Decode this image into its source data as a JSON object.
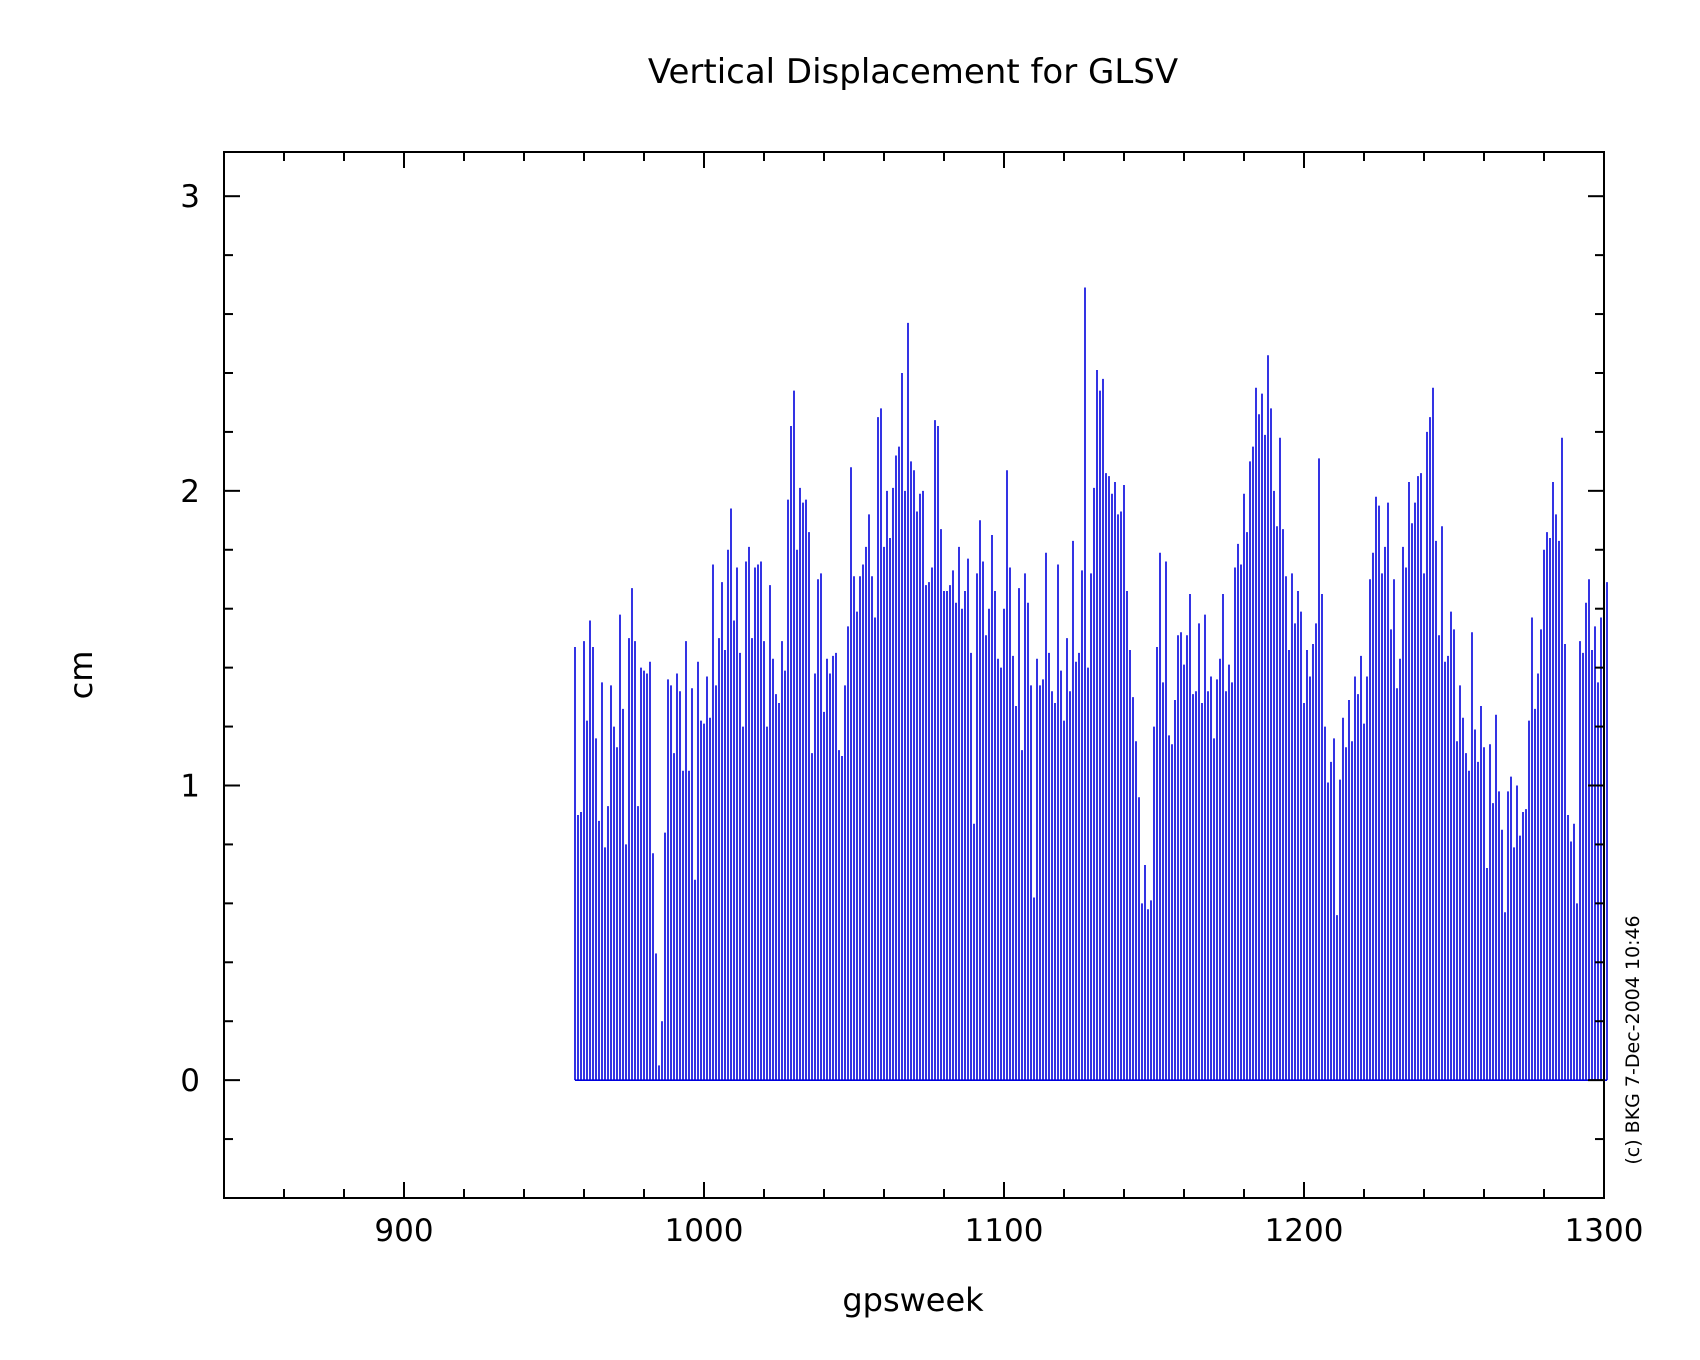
{
  "chart_data": {
    "type": "bar",
    "title": "Vertical Displacement for GLSV",
    "xlabel": "gpsweek",
    "ylabel": "cm",
    "xlim": [
      840,
      1300
    ],
    "ylim": [
      -0.4,
      3.15
    ],
    "x_ticks": [
      "900",
      "1000",
      "1100",
      "1200",
      "1300"
    ],
    "y_ticks": [
      "0",
      "1",
      "2",
      "3"
    ],
    "grid": false,
    "credit": "(c) BKG 7-Dec-2004 10:46",
    "bar_color": "#0000dd",
    "series": [
      {
        "x_start": 957,
        "x_step": 1,
        "values": [
          1.47,
          0.9,
          0.91,
          1.49,
          1.22,
          1.56,
          1.47,
          1.16,
          0.88,
          1.35,
          0.79,
          0.93,
          1.34,
          1.2,
          1.13,
          1.58,
          1.26,
          0.8,
          1.5,
          1.67,
          1.49,
          0.93,
          1.4,
          1.39,
          1.38,
          1.42,
          0.77,
          0.43,
          0.05,
          0.2,
          0.84,
          1.36,
          1.34,
          1.11,
          1.38,
          1.32,
          1.05,
          1.49,
          1.05,
          1.33,
          0.68,
          1.42,
          1.22,
          1.21,
          1.37,
          1.23,
          1.75,
          1.34,
          1.5,
          1.69,
          1.46,
          1.8,
          1.94,
          1.56,
          1.74,
          1.45,
          1.2,
          1.76,
          1.81,
          1.5,
          1.74,
          1.75,
          1.76,
          1.49,
          1.2,
          1.68,
          1.43,
          1.31,
          1.28,
          1.49,
          1.39,
          1.97,
          2.22,
          2.34,
          1.8,
          2.01,
          1.96,
          1.97,
          1.86,
          1.11,
          1.38,
          1.7,
          1.72,
          1.25,
          1.43,
          1.38,
          1.44,
          1.45,
          1.12,
          1.1,
          1.34,
          1.54,
          2.08,
          1.71,
          1.59,
          1.71,
          1.75,
          1.81,
          1.92,
          1.71,
          1.57,
          2.25,
          2.28,
          1.81,
          2.0,
          1.84,
          2.01,
          2.12,
          2.15,
          2.4,
          2.0,
          2.57,
          2.1,
          2.07,
          1.93,
          1.99,
          2.0,
          1.68,
          1.69,
          1.74,
          2.24,
          2.22,
          1.87,
          1.66,
          1.66,
          1.68,
          1.73,
          1.62,
          1.81,
          1.6,
          1.66,
          1.77,
          1.45,
          0.87,
          1.72,
          1.9,
          1.76,
          1.51,
          1.6,
          1.85,
          1.66,
          1.43,
          1.4,
          1.6,
          2.07,
          1.74,
          1.44,
          1.27,
          1.67,
          1.12,
          1.72,
          1.62,
          1.34,
          0.62,
          1.43,
          1.34,
          1.36,
          1.79,
          1.45,
          1.32,
          1.28,
          1.75,
          1.39,
          1.22,
          1.5,
          1.32,
          1.83,
          1.42,
          1.45,
          1.73,
          2.69,
          1.4,
          1.72,
          2.01,
          2.41,
          2.34,
          2.38,
          2.06,
          2.05,
          1.99,
          2.03,
          1.92,
          1.93,
          2.02,
          1.66,
          1.46,
          1.3,
          1.15,
          0.96,
          0.6,
          0.73,
          0.58,
          0.61,
          1.2,
          1.47,
          1.79,
          1.35,
          1.76,
          1.17,
          1.14,
          1.29,
          1.51,
          1.52,
          1.41,
          1.51,
          1.65,
          1.31,
          1.32,
          1.55,
          1.28,
          1.58,
          1.32,
          1.37,
          1.16,
          1.36,
          1.43,
          1.65,
          1.32,
          1.41,
          1.35,
          1.74,
          1.82,
          1.75,
          1.99,
          1.86,
          2.1,
          2.15,
          2.35,
          2.26,
          2.33,
          2.19,
          2.46,
          2.28,
          2.0,
          1.88,
          2.18,
          1.87,
          1.71,
          1.46,
          1.72,
          1.55,
          1.66,
          1.59,
          1.28,
          1.46,
          1.37,
          1.48,
          1.55,
          2.11,
          1.65,
          1.2,
          1.01,
          1.08,
          1.16,
          0.56,
          1.02,
          1.23,
          1.13,
          1.29,
          1.15,
          1.37,
          1.31,
          1.44,
          1.21,
          1.37,
          1.7,
          1.79,
          1.98,
          1.95,
          1.72,
          1.81,
          1.96,
          1.53,
          1.7,
          1.33,
          1.43,
          1.81,
          1.74,
          2.03,
          1.89,
          1.96,
          2.05,
          2.06,
          1.72,
          2.2,
          2.25,
          2.35,
          1.83,
          1.51,
          1.88,
          1.42,
          1.44,
          1.59,
          1.53,
          1.15,
          1.34,
          1.23,
          1.11,
          1.05,
          1.52,
          1.19,
          1.08,
          1.27,
          1.13,
          0.72,
          1.14,
          0.94,
          1.24,
          0.98,
          0.85,
          0.57,
          0.98,
          1.03,
          0.79,
          1.0,
          0.83,
          0.91,
          0.92,
          1.22,
          1.57,
          1.26,
          1.38,
          1.53,
          1.8,
          1.86,
          1.84,
          2.03,
          1.92,
          1.83,
          2.18,
          1.48,
          0.9,
          0.81,
          0.87,
          0.6,
          1.49,
          1.45,
          1.62,
          1.7,
          1.46,
          1.54,
          1.35,
          1.57,
          1.65,
          1.69
        ]
      }
    ]
  }
}
